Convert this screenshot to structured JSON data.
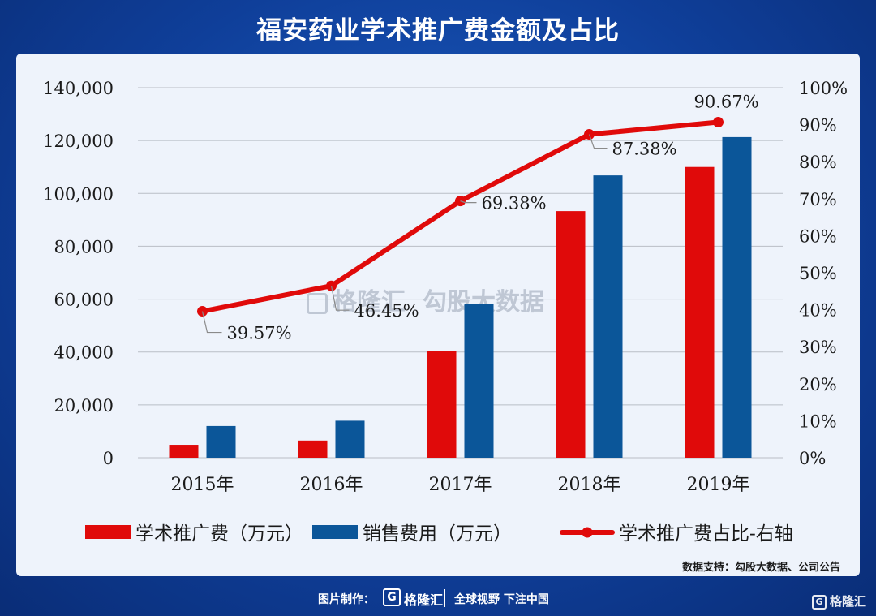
{
  "header": {
    "title": "福安药业学术推广费金额及占比"
  },
  "chart_data": {
    "type": "bar",
    "title": "福安药业学术推广费金额及占比",
    "categories": [
      "2015年",
      "2016年",
      "2017年",
      "2018年",
      "2019年"
    ],
    "series": [
      {
        "name": "学术推广费（万元）",
        "kind": "bar",
        "axis": "left",
        "color": "#e00a0a",
        "values": [
          4900,
          6500,
          40400,
          93300,
          110000
        ]
      },
      {
        "name": "销售费用（万元）",
        "kind": "bar",
        "axis": "left",
        "color": "#0b5699",
        "values": [
          12000,
          14000,
          58200,
          106800,
          121300
        ]
      },
      {
        "name": "学术推广费占比-右轴",
        "kind": "line",
        "axis": "right",
        "color": "#e00a0a",
        "values": [
          39.57,
          46.45,
          69.38,
          87.38,
          90.67
        ],
        "labels": [
          "39.57%",
          "46.45%",
          "69.38%",
          "87.38%",
          "90.67%"
        ]
      }
    ],
    "y_left": {
      "ylim": [
        0,
        140000
      ],
      "ticks": [
        "0",
        "20,000",
        "40,000",
        "60,000",
        "80,000",
        "100,000",
        "120,000",
        "140,000"
      ]
    },
    "y_right": {
      "ylim": [
        0,
        100
      ],
      "ticks": [
        "0%",
        "10%",
        "20%",
        "30%",
        "40%",
        "50%",
        "60%",
        "70%",
        "80%",
        "90%",
        "100%"
      ]
    },
    "grid": true,
    "legend_position": "bottom"
  },
  "source": "数据支持：勾股大数据、公司公告",
  "watermark": {
    "brand": "格隆汇",
    "text": "勾股大数据"
  },
  "footer": {
    "made_by": "图片制作：",
    "logo_letter": "G",
    "brand": "格隆汇",
    "slogan": "全球视野 下注中国"
  },
  "corner_logo": {
    "letter": "G",
    "brand": "格隆汇"
  }
}
